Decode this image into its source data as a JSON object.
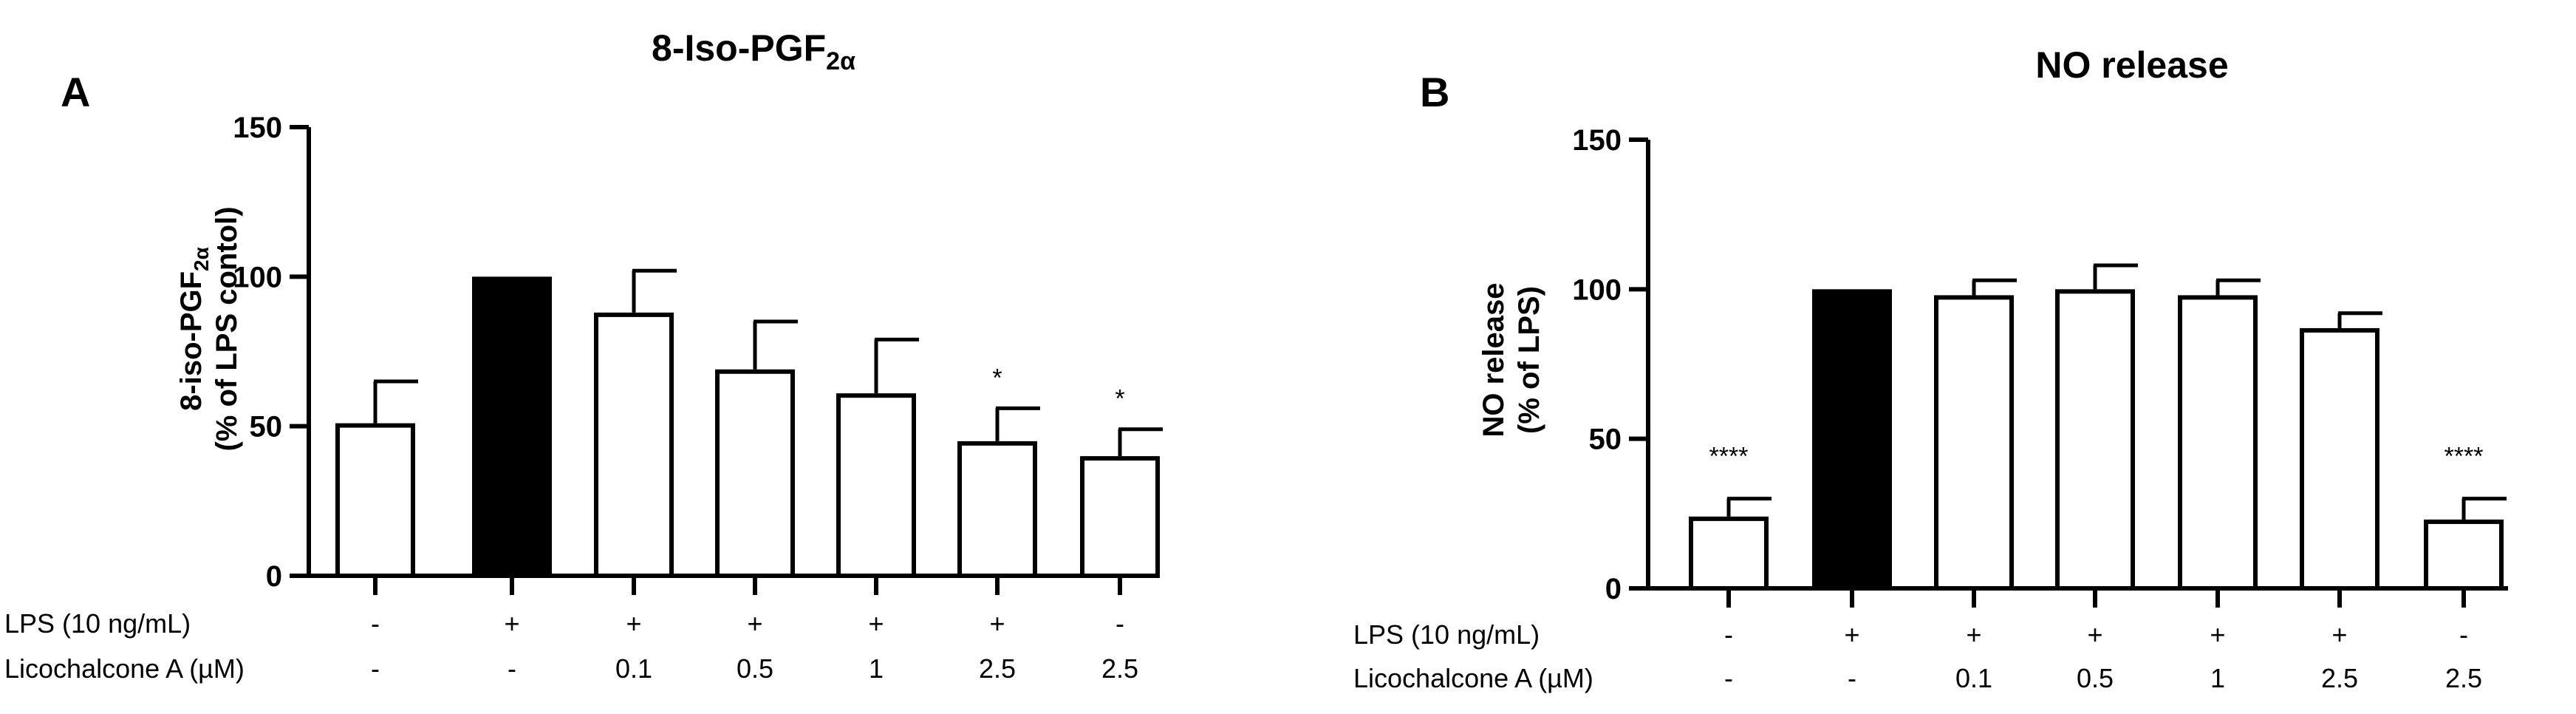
{
  "chart_data": [
    {
      "type": "bar",
      "panel": "A",
      "title": "8-Iso-PGF",
      "title_sub": "2α",
      "ylabel_line1": "8-iso-PGF",
      "ylabel_line1_sub": "2α",
      "ylabel_line2": "(% of LPS contol)",
      "ylim": [
        0,
        150
      ],
      "yticks": [
        0,
        50,
        100,
        150
      ],
      "ytick_labels": [
        "0",
        "50",
        "100",
        "150"
      ],
      "values": [
        51,
        100,
        88,
        69,
        61,
        45,
        40
      ],
      "errors": [
        14,
        0,
        14,
        16,
        18,
        11,
        9
      ],
      "fill": [
        "#ffffff",
        "#000000",
        "#ffffff",
        "#ffffff",
        "#ffffff",
        "#ffffff",
        "#ffffff"
      ],
      "significance": [
        "",
        "",
        "",
        "",
        "",
        "*",
        "*"
      ],
      "row_labels": [
        "LPS (10 ng/mL)",
        "Licochalcone A (µM)"
      ],
      "lps": [
        "-",
        "+",
        "+",
        "+",
        "+",
        "+",
        "-"
      ],
      "licochalcone": [
        "-",
        "-",
        "0.1",
        "0.5",
        "1",
        "2.5",
        "2.5"
      ]
    },
    {
      "type": "bar",
      "panel": "B",
      "title": "NO release",
      "ylabel_line1": "NO release",
      "ylabel_line2": "(% of LPS)",
      "ylim": [
        0,
        150
      ],
      "yticks": [
        0,
        50,
        100,
        150
      ],
      "ytick_labels": [
        "0",
        "50",
        "100",
        "150"
      ],
      "values": [
        24,
        100,
        98,
        100,
        98,
        87,
        23
      ],
      "errors": [
        6,
        0,
        5,
        8,
        5,
        5,
        7
      ],
      "fill": [
        "#ffffff",
        "#000000",
        "#ffffff",
        "#ffffff",
        "#ffffff",
        "#ffffff",
        "#ffffff"
      ],
      "significance": [
        "****",
        "",
        "",
        "",
        "",
        "",
        "****"
      ],
      "row_labels": [
        "LPS (10 ng/mL)",
        "Licochalcone A (µM)"
      ],
      "lps": [
        "-",
        "+",
        "+",
        "+",
        "+",
        "+",
        "-"
      ],
      "licochalcone": [
        "-",
        "-",
        "0.1",
        "0.5",
        "1",
        "2.5",
        "2.5"
      ]
    }
  ]
}
